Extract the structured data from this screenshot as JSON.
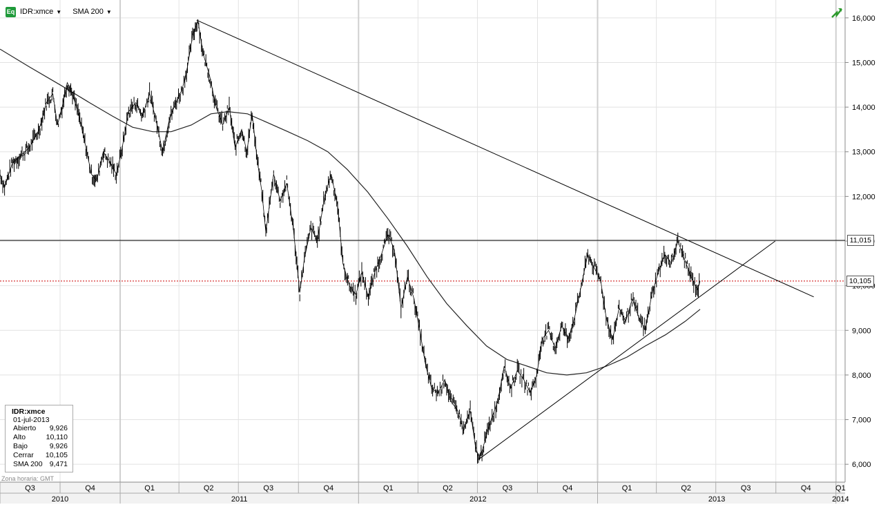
{
  "toolbar": {
    "icon_label": "Eq",
    "symbol": "IDR:xmce",
    "indicator": "SMA 200"
  },
  "legend": {
    "symbol": "IDR:xmce",
    "date": "01-jul-2013",
    "rows": [
      {
        "label": "Abierto",
        "value": "9,926"
      },
      {
        "label": "Alto",
        "value": "10,110"
      },
      {
        "label": "Bajo",
        "value": "9,926"
      },
      {
        "label": "Cerrar",
        "value": "10,105"
      },
      {
        "label": "SMA 200",
        "value": "9,471"
      }
    ]
  },
  "timezone": "Zona horaria: GMT",
  "chart_data": {
    "type": "line",
    "title": "",
    "xlabel": "",
    "ylabel": "",
    "x_range": [
      "2010-07-01",
      "2014-01-15"
    ],
    "ylim": [
      5600,
      16400
    ],
    "y_ticks": [
      6000,
      7000,
      8000,
      9000,
      10000,
      11000,
      12000,
      13000,
      14000,
      15000,
      16000
    ],
    "y_tick_labels": [
      "6,000",
      "7,000",
      "8,000",
      "9,000",
      "10,000",
      "11,000",
      "12,000",
      "13,000",
      "14,000",
      "15,000",
      "16,000"
    ],
    "quarter_ticks": [
      {
        "label": "Q3",
        "start": "2010-07-01",
        "end": "2010-10-01"
      },
      {
        "label": "Q4",
        "start": "2010-10-01",
        "end": "2011-01-01"
      },
      {
        "label": "Q1",
        "start": "2011-01-01",
        "end": "2011-04-01"
      },
      {
        "label": "Q2",
        "start": "2011-04-01",
        "end": "2011-07-01"
      },
      {
        "label": "Q3",
        "start": "2011-07-01",
        "end": "2011-10-01"
      },
      {
        "label": "Q4",
        "start": "2011-10-01",
        "end": "2012-01-01"
      },
      {
        "label": "Q1",
        "start": "2012-01-01",
        "end": "2012-04-01"
      },
      {
        "label": "Q2",
        "start": "2012-04-01",
        "end": "2012-07-01"
      },
      {
        "label": "Q3",
        "start": "2012-07-01",
        "end": "2012-10-01"
      },
      {
        "label": "Q4",
        "start": "2012-10-01",
        "end": "2013-01-01"
      },
      {
        "label": "Q1",
        "start": "2013-01-01",
        "end": "2013-04-01"
      },
      {
        "label": "Q2",
        "start": "2013-04-01",
        "end": "2013-07-01"
      },
      {
        "label": "Q3",
        "start": "2013-07-01",
        "end": "2013-10-01"
      },
      {
        "label": "Q4",
        "start": "2013-10-01",
        "end": "2014-01-01"
      },
      {
        "label": "Q1",
        "start": "2014-01-01",
        "end": "2014-01-15"
      }
    ],
    "year_ticks": [
      {
        "label": "2010",
        "start": "2010-07-01",
        "end": "2011-01-01"
      },
      {
        "label": "2011",
        "start": "2011-01-01",
        "end": "2012-01-01"
      },
      {
        "label": "2012",
        "start": "2012-01-01",
        "end": "2013-01-01"
      },
      {
        "label": "2013",
        "start": "2013-01-01",
        "end": "2014-01-01"
      },
      {
        "label": "2014",
        "start": "2014-01-01",
        "end": "2014-01-15"
      }
    ],
    "series": [
      {
        "type": "price",
        "points": [
          [
            "2010-07-01",
            12500
          ],
          [
            "2010-07-08",
            12200
          ],
          [
            "2010-07-20",
            12750
          ],
          [
            "2010-08-01",
            12900
          ],
          [
            "2010-08-15",
            13100
          ],
          [
            "2010-08-30",
            13500
          ],
          [
            "2010-09-10",
            14100
          ],
          [
            "2010-09-20",
            14300
          ],
          [
            "2010-09-27",
            13600
          ],
          [
            "2010-10-04",
            14000
          ],
          [
            "2010-10-12",
            14550
          ],
          [
            "2010-10-20",
            14300
          ],
          [
            "2010-10-30",
            13800
          ],
          [
            "2010-11-08",
            13200
          ],
          [
            "2010-11-18",
            12500
          ],
          [
            "2010-11-26",
            12350
          ],
          [
            "2010-12-06",
            13000
          ],
          [
            "2010-12-15",
            12800
          ],
          [
            "2010-12-26",
            12500
          ],
          [
            "2011-01-03",
            13000
          ],
          [
            "2011-01-14",
            13900
          ],
          [
            "2011-01-25",
            14100
          ],
          [
            "2011-02-04",
            13800
          ],
          [
            "2011-02-15",
            14300
          ],
          [
            "2011-02-25",
            13700
          ],
          [
            "2011-03-07",
            13000
          ],
          [
            "2011-03-17",
            13700
          ],
          [
            "2011-03-27",
            14100
          ],
          [
            "2011-04-06",
            14400
          ],
          [
            "2011-04-14",
            14900
          ],
          [
            "2011-04-22",
            15600
          ],
          [
            "2011-04-30",
            15950
          ],
          [
            "2011-05-08",
            15200
          ],
          [
            "2011-05-18",
            14700
          ],
          [
            "2011-05-28",
            14000
          ],
          [
            "2011-06-07",
            13600
          ],
          [
            "2011-06-17",
            14000
          ],
          [
            "2011-06-26",
            13100
          ],
          [
            "2011-07-06",
            13500
          ],
          [
            "2011-07-14",
            13000
          ],
          [
            "2011-07-22",
            13850
          ],
          [
            "2011-07-30",
            12800
          ],
          [
            "2011-08-06",
            12100
          ],
          [
            "2011-08-12",
            11200
          ],
          [
            "2011-08-24",
            12500
          ],
          [
            "2011-09-03",
            11900
          ],
          [
            "2011-09-13",
            12300
          ],
          [
            "2011-09-23",
            11300
          ],
          [
            "2011-10-03",
            9850
          ],
          [
            "2011-10-10",
            10600
          ],
          [
            "2011-10-20",
            11300
          ],
          [
            "2011-10-30",
            11000
          ],
          [
            "2011-11-10",
            12000
          ],
          [
            "2011-11-20",
            12500
          ],
          [
            "2011-11-30",
            11800
          ],
          [
            "2011-12-08",
            10500
          ],
          [
            "2011-12-18",
            10000
          ],
          [
            "2011-12-28",
            9800
          ],
          [
            "2012-01-06",
            10300
          ],
          [
            "2012-01-16",
            9750
          ],
          [
            "2012-01-26",
            10300
          ],
          [
            "2012-02-05",
            10700
          ],
          [
            "2012-02-15",
            11150
          ],
          [
            "2012-02-25",
            10800
          ],
          [
            "2012-03-06",
            9500
          ],
          [
            "2012-03-16",
            10200
          ],
          [
            "2012-03-26",
            9700
          ],
          [
            "2012-04-06",
            8800
          ],
          [
            "2012-04-13",
            8200
          ],
          [
            "2012-04-22",
            7700
          ],
          [
            "2012-05-02",
            7600
          ],
          [
            "2012-05-12",
            7900
          ],
          [
            "2012-05-22",
            7400
          ],
          [
            "2012-06-01",
            7200
          ],
          [
            "2012-06-10",
            6750
          ],
          [
            "2012-06-20",
            7200
          ],
          [
            "2012-06-28",
            6400
          ],
          [
            "2012-07-04",
            6100
          ],
          [
            "2012-07-12",
            6500
          ],
          [
            "2012-07-22",
            7000
          ],
          [
            "2012-08-01",
            7400
          ],
          [
            "2012-08-11",
            8200
          ],
          [
            "2012-08-21",
            7700
          ],
          [
            "2012-08-31",
            8100
          ],
          [
            "2012-09-10",
            7900
          ],
          [
            "2012-09-20",
            7600
          ],
          [
            "2012-09-30",
            8000
          ],
          [
            "2012-10-08",
            8800
          ],
          [
            "2012-10-18",
            9000
          ],
          [
            "2012-10-28",
            8600
          ],
          [
            "2012-11-07",
            9100
          ],
          [
            "2012-11-17",
            8800
          ],
          [
            "2012-11-27",
            9300
          ],
          [
            "2012-12-07",
            10000
          ],
          [
            "2012-12-17",
            10700
          ],
          [
            "2012-12-27",
            10400
          ],
          [
            "2013-01-06",
            10100
          ],
          [
            "2013-01-14",
            9300
          ],
          [
            "2013-01-24",
            8800
          ],
          [
            "2013-02-03",
            9500
          ],
          [
            "2013-02-13",
            9200
          ],
          [
            "2013-02-23",
            9700
          ],
          [
            "2013-03-05",
            9300
          ],
          [
            "2013-03-15",
            9000
          ],
          [
            "2013-03-25",
            9800
          ],
          [
            "2013-04-04",
            10300
          ],
          [
            "2013-04-14",
            10700
          ],
          [
            "2013-04-24",
            10500
          ],
          [
            "2013-05-04",
            11000
          ],
          [
            "2013-05-14",
            10600
          ],
          [
            "2013-05-24",
            10200
          ],
          [
            "2013-06-03",
            9900
          ],
          [
            "2013-06-07",
            10105
          ]
        ]
      },
      {
        "name": "SMA 200",
        "points": [
          [
            "2010-07-01",
            15300
          ],
          [
            "2010-08-15",
            14900
          ],
          [
            "2010-10-01",
            14500
          ],
          [
            "2010-11-15",
            14100
          ],
          [
            "2010-12-20",
            13800
          ],
          [
            "2011-01-20",
            13550
          ],
          [
            "2011-02-20",
            13450
          ],
          [
            "2011-03-20",
            13450
          ],
          [
            "2011-04-20",
            13600
          ],
          [
            "2011-05-20",
            13850
          ],
          [
            "2011-06-15",
            13900
          ],
          [
            "2011-07-15",
            13850
          ],
          [
            "2011-08-15",
            13650
          ],
          [
            "2011-09-15",
            13450
          ],
          [
            "2011-10-15",
            13250
          ],
          [
            "2011-11-15",
            13000
          ],
          [
            "2011-12-15",
            12600
          ],
          [
            "2012-01-15",
            12100
          ],
          [
            "2012-02-15",
            11500
          ],
          [
            "2012-03-15",
            10900
          ],
          [
            "2012-04-15",
            10200
          ],
          [
            "2012-05-15",
            9600
          ],
          [
            "2012-06-15",
            9100
          ],
          [
            "2012-07-15",
            8650
          ],
          [
            "2012-08-15",
            8350
          ],
          [
            "2012-09-15",
            8200
          ],
          [
            "2012-10-15",
            8050
          ],
          [
            "2012-11-15",
            8000
          ],
          [
            "2012-12-15",
            8050
          ],
          [
            "2013-01-15",
            8200
          ],
          [
            "2013-02-15",
            8400
          ],
          [
            "2013-03-15",
            8650
          ],
          [
            "2013-04-15",
            8900
          ],
          [
            "2013-05-15",
            9200
          ],
          [
            "2013-06-07",
            9471
          ]
        ]
      }
    ],
    "trendlines": [
      {
        "from": [
          "2011-04-28",
          15950
        ],
        "to": [
          "2013-11-28",
          9750
        ]
      },
      {
        "from": [
          "2012-07-02",
          6100
        ],
        "to": [
          "2013-09-30",
          11000
        ]
      }
    ],
    "horizontal_lines": [
      {
        "value": 11015,
        "label": "11,015",
        "style": "solid",
        "color": "#000000"
      },
      {
        "value": 10105,
        "label": "10,105",
        "style": "dotted",
        "color": "#cc0000"
      }
    ],
    "grid": true,
    "colors": {
      "price": "#000000",
      "sma": "#222222",
      "grid": "#e2e2e2",
      "axis_band": "#f2f2f2"
    }
  }
}
